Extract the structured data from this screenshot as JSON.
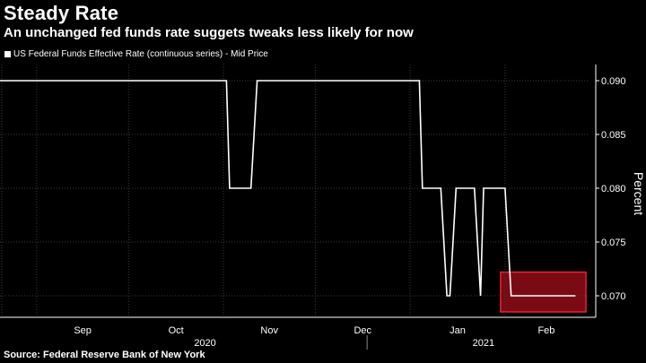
{
  "header": {
    "title": "Steady Rate",
    "subtitle": "An unchanged fed funds rate suggets tweaks less likely for now"
  },
  "footer": {
    "source": "Source: Federal Reserve Bank of New York"
  },
  "chart_data": {
    "type": "line",
    "title": "Steady Rate",
    "subtitle": "An unchanged fed funds rate suggets tweaks less likely for now",
    "ylabel": "Percent",
    "ylim": [
      0.068,
      0.0915
    ],
    "yticks": [
      0.07,
      0.075,
      0.08,
      0.085,
      0.09
    ],
    "ytick_labels": [
      "0.070",
      "0.075",
      "0.080",
      "0.085",
      "0.090"
    ],
    "xlim": [
      "2020-08-20",
      "2021-02-28"
    ],
    "month_ticks": [
      {
        "label": "Sep",
        "date": "2020-09-01"
      },
      {
        "label": "Oct",
        "date": "2020-10-01"
      },
      {
        "label": "Nov",
        "date": "2020-11-01"
      },
      {
        "label": "Dec",
        "date": "2020-12-01"
      },
      {
        "label": "Jan",
        "date": "2021-01-01"
      },
      {
        "label": "Feb",
        "date": "2021-02-01"
      }
    ],
    "year_labels": [
      {
        "label": "2020",
        "date": "2020-10-26"
      },
      {
        "label": "2021",
        "date": "2021-02-01"
      }
    ],
    "year_divider": "2021-01-01",
    "grid": true,
    "legend_position": "top-left",
    "series": [
      {
        "name": "US Federal Funds Effective Rate (continuous series) - Mid Price",
        "color": "#ffffff",
        "points": [
          [
            "2020-08-20",
            0.09
          ],
          [
            "2020-11-02",
            0.09
          ],
          [
            "2020-11-03",
            0.08
          ],
          [
            "2020-11-10",
            0.08
          ],
          [
            "2020-11-12",
            0.09
          ],
          [
            "2021-01-04",
            0.09
          ],
          [
            "2021-01-05",
            0.08
          ],
          [
            "2021-01-11",
            0.08
          ],
          [
            "2021-01-13",
            0.07
          ],
          [
            "2021-01-14",
            0.07
          ],
          [
            "2021-01-16",
            0.08
          ],
          [
            "2021-01-22",
            0.08
          ],
          [
            "2021-01-24",
            0.07
          ],
          [
            "2021-01-25",
            0.08
          ],
          [
            "2021-02-01",
            0.08
          ],
          [
            "2021-02-03",
            0.07
          ],
          [
            "2021-02-24",
            0.07
          ]
        ]
      }
    ],
    "highlight": {
      "date_range": [
        "2021-02-01",
        "2021-02-28"
      ],
      "value_range": [
        0.0685,
        0.0722
      ],
      "fill": "#7a0a14",
      "stroke": "#e8213a"
    },
    "colors": {
      "background": "#000000",
      "grid": "#3a3a3a",
      "text": "#ffffff"
    }
  }
}
